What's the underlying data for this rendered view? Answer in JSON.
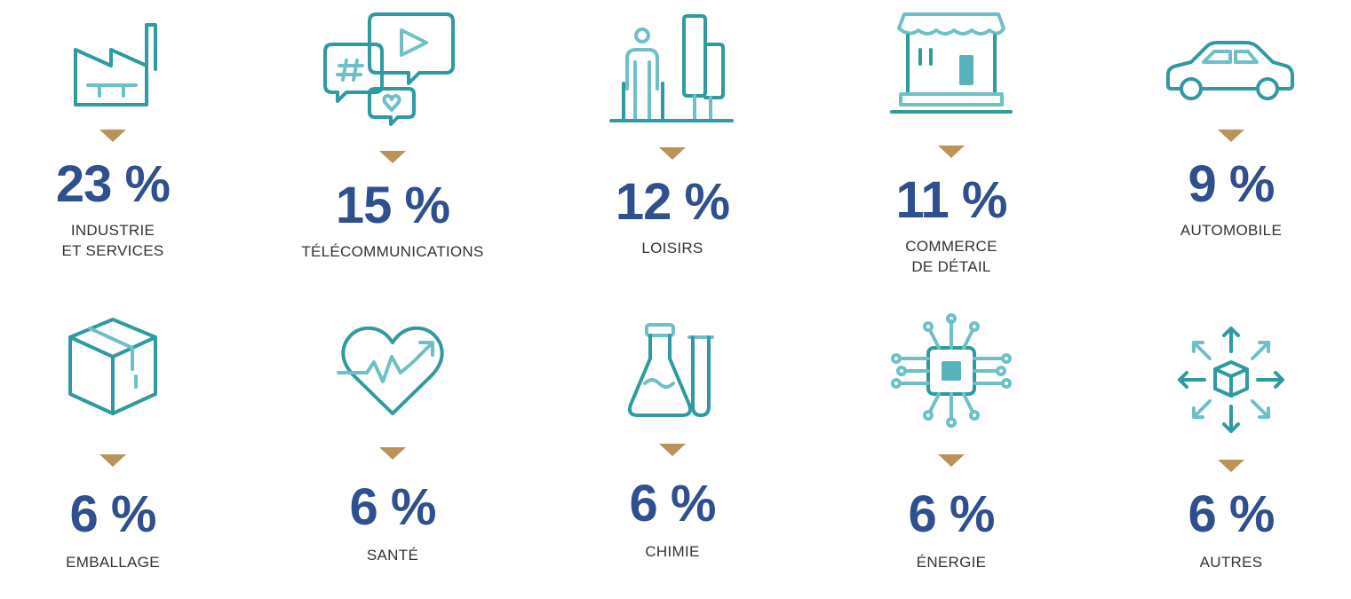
{
  "colors": {
    "icon": "#2f9a9f",
    "icon_light": "#6ec0c6",
    "percent": "#2f4f8f",
    "arrow": "#b9935a",
    "label": "#333333"
  },
  "sectors": [
    {
      "icon": "factory-icon",
      "percent": "23 %",
      "label": "INDUSTRIE\nET SERVICES"
    },
    {
      "icon": "chat-bubbles-icon",
      "percent": "15 %",
      "label": "TÉLÉCOMMUNICATIONS"
    },
    {
      "icon": "person-towers-icon",
      "percent": "12 %",
      "label": "LOISIRS"
    },
    {
      "icon": "storefront-icon",
      "percent": "11 %",
      "label": "COMMERCE\nDE DÉTAIL"
    },
    {
      "icon": "car-icon",
      "percent": "9 %",
      "label": "AUTOMOBILE"
    },
    {
      "icon": "box-icon",
      "percent": "6 %",
      "label": "EMBALLAGE"
    },
    {
      "icon": "heart-pulse-icon",
      "percent": "6 %",
      "label": "SANTÉ"
    },
    {
      "icon": "flask-tube-icon",
      "percent": "6 %",
      "label": "CHIMIE"
    },
    {
      "icon": "chip-icon",
      "percent": "6 %",
      "label": "ÉNERGIE"
    },
    {
      "icon": "box-arrows-icon",
      "percent": "6 %",
      "label": "AUTRES"
    }
  ]
}
